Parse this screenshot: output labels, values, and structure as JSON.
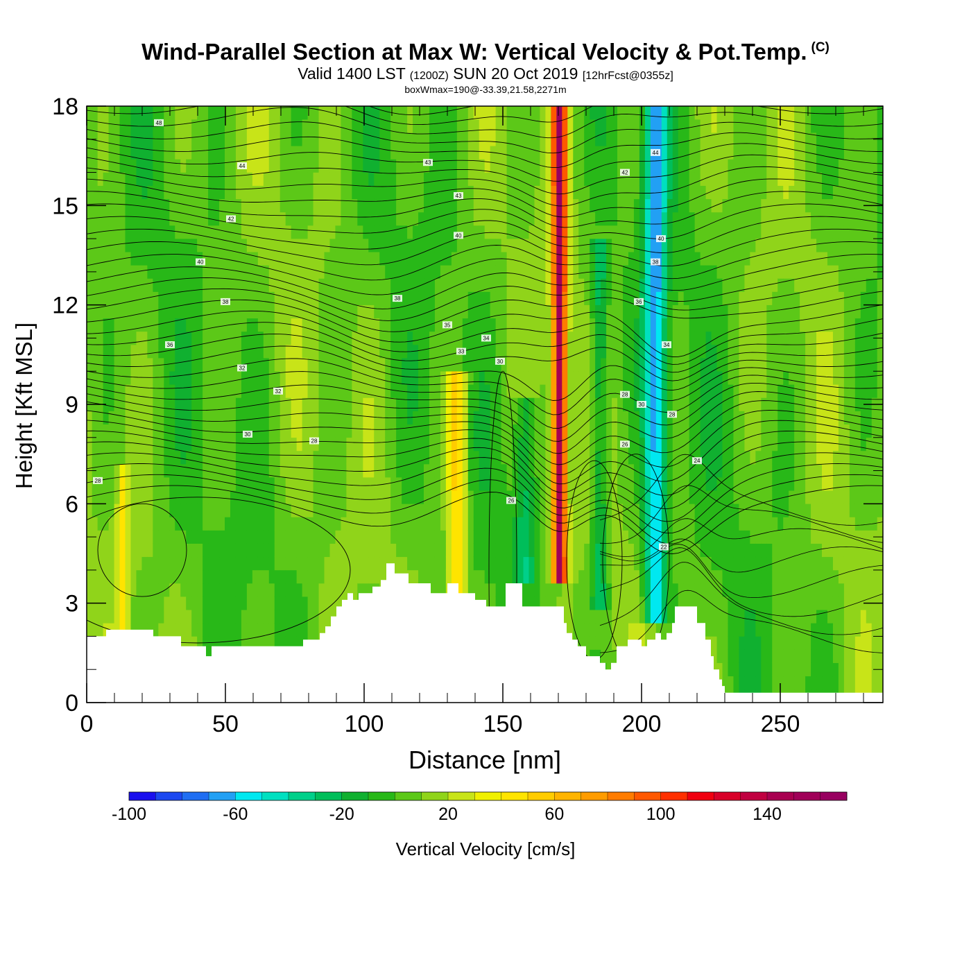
{
  "title": {
    "main": "Wind-Parallel Section at Max W: Vertical Velocity & Pot.Temp.",
    "copyright": "(C)",
    "valid_prefix": "Valid 1400 LST",
    "valid_utc": "(1200Z)",
    "valid_date": "SUN 20 Oct 2019",
    "forecast": "[12hrFcst@0355z]",
    "subtitle": "boxWmax=190@-33.39,21.58,2271m"
  },
  "chart_data": {
    "type": "heatmap",
    "xlabel": "Distance [nm]",
    "ylabel": "Height [Kft MSL]",
    "xlim": [
      0,
      287
    ],
    "ylim": [
      0,
      18
    ],
    "x_ticks": [
      0,
      50,
      100,
      150,
      200,
      250
    ],
    "y_ticks": [
      0,
      3,
      6,
      9,
      12,
      15,
      18
    ],
    "colorbar": {
      "label": "Vertical Velocity [cm/s]",
      "min": -100,
      "max": 170,
      "step": 10,
      "tick_labels": [
        "-100",
        "-60",
        "-20",
        "20",
        "60",
        "100",
        "140"
      ],
      "tick_values": [
        -100,
        -60,
        -20,
        20,
        60,
        100,
        140
      ],
      "colors": [
        "#1a10ee",
        "#1c48f0",
        "#1f6ef2",
        "#22a0f4",
        "#00e8f0",
        "#00e0c0",
        "#00d08a",
        "#00be5a",
        "#10b030",
        "#28b818",
        "#5cc818",
        "#90d41a",
        "#c8e418",
        "#f0f000",
        "#ffe400",
        "#ffcc00",
        "#ffb400",
        "#ff9c00",
        "#ff7c00",
        "#ff5800",
        "#ff3000",
        "#f00010",
        "#d80028",
        "#c00040",
        "#a80050",
        "#a00058",
        "#980060"
      ]
    },
    "terrain_profile": {
      "x": [
        0,
        7,
        7,
        24,
        24,
        34,
        34,
        43,
        43,
        45,
        45,
        78,
        78,
        84,
        84,
        86,
        86,
        88,
        88,
        90,
        90,
        92,
        92,
        94,
        94,
        96,
        96,
        98,
        98,
        103,
        103,
        106,
        106,
        108,
        108,
        111,
        111,
        116,
        116,
        121,
        121,
        124,
        124,
        130,
        130,
        133,
        133,
        134,
        134,
        140,
        140,
        144,
        144,
        145,
        145,
        146,
        146,
        151,
        151,
        157,
        157,
        172,
        172,
        173,
        173,
        175,
        175,
        177,
        177,
        180,
        180,
        185,
        185,
        187,
        187,
        189,
        189,
        191,
        191,
        195,
        195,
        200,
        200,
        202,
        202,
        205,
        205,
        207,
        207,
        209,
        209,
        211,
        211,
        212,
        212,
        215,
        215,
        220,
        220,
        223,
        223,
        225,
        225,
        226,
        226,
        228,
        228,
        229,
        229,
        230,
        230,
        232,
        232,
        287
      ],
      "height": [
        2.0,
        2.0,
        2.2,
        2.2,
        2.0,
        2.0,
        1.7,
        1.7,
        1.4,
        1.4,
        1.7,
        1.7,
        1.9,
        1.9,
        2.1,
        2.1,
        2.3,
        2.3,
        2.6,
        2.6,
        2.9,
        2.9,
        3.1,
        3.1,
        3.3,
        3.3,
        3.1,
        3.1,
        3.3,
        3.3,
        3.5,
        3.5,
        3.7,
        3.7,
        4.2,
        4.2,
        3.9,
        3.9,
        3.6,
        3.6,
        3.6,
        3.6,
        3.3,
        3.3,
        3.6,
        3.6,
        3.6,
        3.6,
        3.3,
        3.3,
        3.1,
        3.1,
        2.9,
        2.9,
        2.9,
        2.9,
        2.9,
        2.9,
        3.6,
        3.6,
        2.9,
        2.9,
        2.4,
        2.4,
        2.1,
        2.1,
        1.9,
        1.9,
        1.7,
        1.7,
        1.4,
        1.4,
        1.2,
        1.2,
        1.0,
        1.0,
        1.2,
        1.2,
        1.7,
        1.7,
        1.9,
        1.9,
        1.7,
        1.7,
        1.9,
        1.9,
        2.1,
        2.1,
        1.9,
        1.9,
        2.1,
        2.1,
        2.4,
        2.4,
        2.9,
        2.9,
        2.9,
        2.9,
        2.4,
        2.4,
        1.9,
        1.9,
        1.4,
        1.4,
        1.0,
        1.0,
        0.7,
        0.7,
        0.5,
        0.5,
        0.3,
        0.3,
        0.3,
        0.3
      ]
    },
    "vertical_velocity_features": [
      {
        "x": 170.5,
        "half_width": 2.5,
        "value": 150,
        "z_from": 3.6,
        "z_to": 18
      },
      {
        "x": 133.5,
        "half_width": 3.5,
        "value": 55,
        "z_from": 3.3,
        "z_to": 10
      },
      {
        "x": 205,
        "half_width": 4,
        "value": -60,
        "z_from": 2.5,
        "z_to": 18
      },
      {
        "x": 185,
        "half_width": 3,
        "value": -30,
        "z_from": 3,
        "z_to": 14
      },
      {
        "x": 13,
        "half_width": 2,
        "value": 35,
        "z_from": 2.2,
        "z_to": 7
      },
      {
        "x": 158,
        "half_width": 4,
        "value": -25,
        "z_from": 3.6,
        "z_to": 9
      }
    ],
    "theta_contour_labels": [
      {
        "text": "48",
        "x": 26,
        "y": 17.5
      },
      {
        "text": "44",
        "x": 56,
        "y": 16.2
      },
      {
        "text": "43",
        "x": 123,
        "y": 16.3
      },
      {
        "text": "44",
        "x": 205,
        "y": 16.6
      },
      {
        "text": "42",
        "x": 194,
        "y": 16.0
      },
      {
        "text": "43",
        "x": 134,
        "y": 15.3
      },
      {
        "text": "42",
        "x": 52,
        "y": 14.6
      },
      {
        "text": "40",
        "x": 134,
        "y": 14.1
      },
      {
        "text": "40",
        "x": 207,
        "y": 14.0
      },
      {
        "text": "40",
        "x": 41,
        "y": 13.3
      },
      {
        "text": "38",
        "x": 205,
        "y": 13.3
      },
      {
        "text": "38",
        "x": 112,
        "y": 12.2
      },
      {
        "text": "38",
        "x": 50,
        "y": 12.1
      },
      {
        "text": "36",
        "x": 199,
        "y": 12.1
      },
      {
        "text": "35",
        "x": 130,
        "y": 11.4
      },
      {
        "text": "34",
        "x": 144,
        "y": 11.0
      },
      {
        "text": "36",
        "x": 30,
        "y": 10.8
      },
      {
        "text": "34",
        "x": 209,
        "y": 10.8
      },
      {
        "text": "33",
        "x": 135,
        "y": 10.6
      },
      {
        "text": "30",
        "x": 149,
        "y": 10.3
      },
      {
        "text": "32",
        "x": 56,
        "y": 10.1
      },
      {
        "text": "32",
        "x": 69,
        "y": 9.4
      },
      {
        "text": "28",
        "x": 194,
        "y": 9.3
      },
      {
        "text": "30",
        "x": 200,
        "y": 9.0
      },
      {
        "text": "28",
        "x": 211,
        "y": 8.7
      },
      {
        "text": "30",
        "x": 58,
        "y": 8.1
      },
      {
        "text": "28",
        "x": 82,
        "y": 7.9
      },
      {
        "text": "26",
        "x": 194,
        "y": 7.8
      },
      {
        "text": "24",
        "x": 220,
        "y": 7.3
      },
      {
        "text": "28",
        "x": 4,
        "y": 6.7
      },
      {
        "text": "26",
        "x": 153,
        "y": 6.1
      },
      {
        "text": "22",
        "x": 208,
        "y": 4.7
      }
    ]
  }
}
